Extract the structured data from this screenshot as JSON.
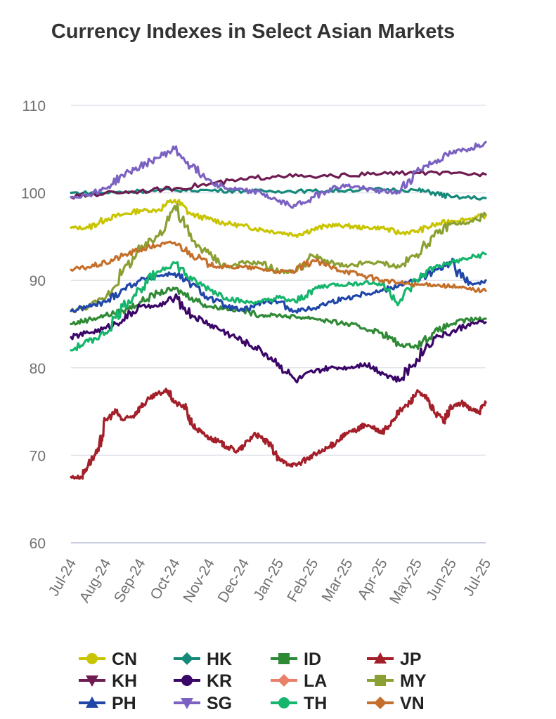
{
  "chart_data": {
    "type": "line",
    "title": "Currency Indexes in Select Asian Markets",
    "xlabel": "",
    "ylabel": "",
    "ylim": [
      60,
      110
    ],
    "yticks": [
      60,
      70,
      80,
      90,
      100,
      110
    ],
    "xlim": [
      0,
      12
    ],
    "grid": true,
    "legend_position": "bottom",
    "categories": [
      "Jul-24",
      "Aug-24",
      "Sep-24",
      "Oct-24",
      "Nov-24",
      "Dec-24",
      "Jan-25",
      "Feb-25",
      "Mar-25",
      "Apr-25",
      "May-25",
      "Jun-25",
      "Jul-25"
    ],
    "series": [
      {
        "name": "CN",
        "color": "#c8c400",
        "marker": "circle",
        "points": [
          [
            0,
            96
          ],
          [
            0.5,
            96
          ],
          [
            1,
            97
          ],
          [
            1.5,
            97.5
          ],
          [
            2,
            98
          ],
          [
            2.5,
            98
          ],
          [
            3,
            99.2
          ],
          [
            3.5,
            97.5
          ],
          [
            4,
            97
          ],
          [
            4.5,
            96.5
          ],
          [
            5,
            96.2
          ],
          [
            5.5,
            95.8
          ],
          [
            6,
            95.5
          ],
          [
            6.5,
            95.2
          ],
          [
            7,
            95.8
          ],
          [
            7.5,
            96.3
          ],
          [
            8,
            96.2
          ],
          [
            8.5,
            96
          ],
          [
            9,
            96
          ],
          [
            9.5,
            95.4
          ],
          [
            10,
            95.6
          ],
          [
            10.5,
            96.3
          ],
          [
            11,
            96.8
          ],
          [
            11.5,
            97
          ],
          [
            12,
            97.4
          ]
        ]
      },
      {
        "name": "HK",
        "color": "#14897a",
        "marker": "diamond",
        "points": [
          [
            0,
            100
          ],
          [
            1,
            100
          ],
          [
            2,
            100.2
          ],
          [
            3,
            100.3
          ],
          [
            4,
            100.3
          ],
          [
            5,
            100.2
          ],
          [
            6,
            100.2
          ],
          [
            7,
            100.2
          ],
          [
            8,
            100.3
          ],
          [
            9,
            100.4
          ],
          [
            10,
            100.3
          ],
          [
            10.5,
            100
          ],
          [
            11,
            99.5
          ],
          [
            12,
            99.4
          ]
        ]
      },
      {
        "name": "ID",
        "color": "#2f8a35",
        "marker": "square",
        "points": [
          [
            0,
            85
          ],
          [
            0.5,
            85.5
          ],
          [
            1,
            86
          ],
          [
            1.5,
            86.5
          ],
          [
            2,
            87.5
          ],
          [
            2.5,
            88.5
          ],
          [
            3,
            89
          ],
          [
            3.5,
            88
          ],
          [
            4,
            87
          ],
          [
            4.5,
            86.8
          ],
          [
            5,
            86.5
          ],
          [
            5.5,
            86
          ],
          [
            6,
            86
          ],
          [
            6.5,
            85.8
          ],
          [
            7,
            85.7
          ],
          [
            7.5,
            85.3
          ],
          [
            8,
            85
          ],
          [
            8.5,
            84.5
          ],
          [
            9,
            84
          ],
          [
            9.5,
            82.6
          ],
          [
            10,
            82.5
          ],
          [
            10.5,
            84
          ],
          [
            11,
            85
          ],
          [
            11.5,
            85.5
          ],
          [
            12,
            85.6
          ]
        ]
      },
      {
        "name": "JP",
        "color": "#a31f29",
        "marker": "triangle-up",
        "points": [
          [
            0,
            67.5
          ],
          [
            0.3,
            67.5
          ],
          [
            0.5,
            69
          ],
          [
            0.8,
            70.5
          ],
          [
            1,
            74
          ],
          [
            1.3,
            75
          ],
          [
            1.5,
            74
          ],
          [
            1.8,
            74.5
          ],
          [
            2,
            75.5
          ],
          [
            2.3,
            76.5
          ],
          [
            2.5,
            77
          ],
          [
            2.8,
            77.4
          ],
          [
            3,
            76
          ],
          [
            3.3,
            75.5
          ],
          [
            3.5,
            73.5
          ],
          [
            3.8,
            72.5
          ],
          [
            4,
            72
          ],
          [
            4.3,
            71.5
          ],
          [
            4.5,
            71
          ],
          [
            4.8,
            70.5
          ],
          [
            5,
            71
          ],
          [
            5.3,
            72.5
          ],
          [
            5.5,
            72
          ],
          [
            5.8,
            71
          ],
          [
            6,
            69.5
          ],
          [
            6.3,
            69
          ],
          [
            6.5,
            68.9
          ],
          [
            6.8,
            69.5
          ],
          [
            7,
            70
          ],
          [
            7.3,
            70.5
          ],
          [
            7.5,
            71
          ],
          [
            7.8,
            72
          ],
          [
            8,
            72.5
          ],
          [
            8.3,
            73
          ],
          [
            8.5,
            73.5
          ],
          [
            8.8,
            73
          ],
          [
            9,
            72.5
          ],
          [
            9.3,
            74
          ],
          [
            9.5,
            75
          ],
          [
            9.8,
            76
          ],
          [
            10,
            77.2
          ],
          [
            10.3,
            76.5
          ],
          [
            10.5,
            75
          ],
          [
            10.8,
            74
          ],
          [
            11,
            75.5
          ],
          [
            11.3,
            76
          ],
          [
            11.5,
            75.5
          ],
          [
            11.8,
            74.8
          ],
          [
            12,
            76
          ]
        ]
      },
      {
        "name": "KH",
        "color": "#6e1c52",
        "marker": "triangle-down",
        "points": [
          [
            0,
            99.5
          ],
          [
            1,
            100
          ],
          [
            2,
            100.2
          ],
          [
            3,
            100.5
          ],
          [
            4,
            101
          ],
          [
            5,
            101.5
          ],
          [
            6,
            102
          ],
          [
            7,
            101.8
          ],
          [
            8,
            102
          ],
          [
            9,
            102.2
          ],
          [
            10,
            102.3
          ],
          [
            11,
            102.2
          ],
          [
            12,
            102.1
          ]
        ]
      },
      {
        "name": "KR",
        "color": "#3a0667",
        "marker": "circle",
        "points": [
          [
            0,
            83.5
          ],
          [
            0.5,
            84
          ],
          [
            1,
            84.5
          ],
          [
            1.5,
            85.5
          ],
          [
            2,
            87
          ],
          [
            2.5,
            87
          ],
          [
            3,
            88
          ],
          [
            3.5,
            86
          ],
          [
            4,
            85
          ],
          [
            4.5,
            84
          ],
          [
            5,
            83
          ],
          [
            5.5,
            82
          ],
          [
            6,
            80.5
          ],
          [
            6.5,
            78.5
          ],
          [
            7,
            79.5
          ],
          [
            7.5,
            80
          ],
          [
            8,
            80
          ],
          [
            8.5,
            80.5
          ],
          [
            9,
            79.5
          ],
          [
            9.5,
            78.5
          ],
          [
            10,
            81
          ],
          [
            10.5,
            83.5
          ],
          [
            11,
            84
          ],
          [
            11.5,
            85
          ],
          [
            12,
            85.2
          ]
        ]
      },
      {
        "name": "LA",
        "color": "#e8806a",
        "marker": "diamond",
        "points": []
      },
      {
        "name": "MY",
        "color": "#8aa032",
        "marker": "square",
        "points": [
          [
            0,
            86.5
          ],
          [
            0.5,
            87
          ],
          [
            1,
            88
          ],
          [
            1.5,
            91
          ],
          [
            2,
            93.5
          ],
          [
            2.5,
            95
          ],
          [
            3,
            98.5
          ],
          [
            3.5,
            94.5
          ],
          [
            4,
            93
          ],
          [
            4.5,
            91.5
          ],
          [
            5,
            92
          ],
          [
            5.5,
            92
          ],
          [
            6,
            91
          ],
          [
            6.5,
            91
          ],
          [
            7,
            92.8
          ],
          [
            7.5,
            92
          ],
          [
            8,
            91.5
          ],
          [
            8.5,
            92
          ],
          [
            9,
            92
          ],
          [
            9.5,
            91.5
          ],
          [
            10,
            93
          ],
          [
            10.5,
            95
          ],
          [
            11,
            96.5
          ],
          [
            11.5,
            96.5
          ],
          [
            12,
            97.5
          ]
        ]
      },
      {
        "name": "PH",
        "color": "#1f46a8",
        "marker": "triangle-up",
        "points": [
          [
            0,
            86.5
          ],
          [
            0.5,
            87
          ],
          [
            1,
            87.5
          ],
          [
            1.5,
            89
          ],
          [
            2,
            90
          ],
          [
            2.5,
            90.5
          ],
          [
            3,
            90.8
          ],
          [
            3.5,
            89.5
          ],
          [
            4,
            88
          ],
          [
            4.5,
            87
          ],
          [
            5,
            86.5
          ],
          [
            5.5,
            87.5
          ],
          [
            6,
            87.5
          ],
          [
            6.5,
            86.5
          ],
          [
            7,
            86.8
          ],
          [
            7.5,
            87.5
          ],
          [
            8,
            88
          ],
          [
            8.5,
            88.5
          ],
          [
            9,
            88.8
          ],
          [
            9.5,
            89.5
          ],
          [
            10,
            90
          ],
          [
            10.5,
            91
          ],
          [
            11,
            92
          ],
          [
            11.5,
            89.5
          ],
          [
            12,
            90
          ]
        ]
      },
      {
        "name": "SG",
        "color": "#7b62c2",
        "marker": "triangle-down",
        "points": [
          [
            0,
            99.5
          ],
          [
            0.5,
            99.8
          ],
          [
            1,
            100.5
          ],
          [
            1.5,
            102
          ],
          [
            2,
            103
          ],
          [
            2.5,
            104
          ],
          [
            3,
            105
          ],
          [
            3.5,
            103
          ],
          [
            4,
            101.5
          ],
          [
            4.5,
            100.5
          ],
          [
            5,
            100.3
          ],
          [
            5.5,
            100
          ],
          [
            6,
            99
          ],
          [
            6.5,
            98.5
          ],
          [
            7,
            99.5
          ],
          [
            7.5,
            100.5
          ],
          [
            8,
            100.8
          ],
          [
            8.5,
            100.5
          ],
          [
            9,
            100.2
          ],
          [
            9.5,
            100
          ],
          [
            10,
            102.5
          ],
          [
            10.5,
            103.5
          ],
          [
            11,
            104.5
          ],
          [
            11.5,
            105
          ],
          [
            12,
            105.8
          ]
        ]
      },
      {
        "name": "TH",
        "color": "#15b56c",
        "marker": "circle",
        "points": [
          [
            0,
            82
          ],
          [
            0.5,
            83
          ],
          [
            1,
            84
          ],
          [
            1.5,
            87
          ],
          [
            2,
            89
          ],
          [
            2.5,
            91
          ],
          [
            3,
            92
          ],
          [
            3.5,
            90
          ],
          [
            4,
            89
          ],
          [
            4.5,
            88
          ],
          [
            5,
            87.5
          ],
          [
            5.5,
            87.5
          ],
          [
            6,
            88
          ],
          [
            6.5,
            87.5
          ],
          [
            7,
            89
          ],
          [
            7.5,
            89.5
          ],
          [
            8,
            89.5
          ],
          [
            8.5,
            89.8
          ],
          [
            9,
            89.5
          ],
          [
            9.5,
            87.5
          ],
          [
            10,
            90
          ],
          [
            10.5,
            91.5
          ],
          [
            11,
            92
          ],
          [
            11.5,
            92.5
          ],
          [
            12,
            93
          ]
        ]
      },
      {
        "name": "VN",
        "color": "#c46f2a",
        "marker": "diamond",
        "points": [
          [
            0,
            91.2
          ],
          [
            0.5,
            91.5
          ],
          [
            1,
            92
          ],
          [
            1.5,
            92.8
          ],
          [
            2,
            93.5
          ],
          [
            2.5,
            94
          ],
          [
            3,
            94.3
          ],
          [
            3.5,
            93
          ],
          [
            4,
            91.8
          ],
          [
            4.5,
            91.5
          ],
          [
            5,
            91.5
          ],
          [
            5.5,
            91.3
          ],
          [
            6,
            91
          ],
          [
            6.5,
            91
          ],
          [
            7,
            92.3
          ],
          [
            7.5,
            91.5
          ],
          [
            8,
            91
          ],
          [
            8.5,
            90.5
          ],
          [
            9,
            90
          ],
          [
            9.5,
            89.7
          ],
          [
            10,
            89.5
          ],
          [
            10.5,
            89.5
          ],
          [
            11,
            89.3
          ],
          [
            11.5,
            89
          ],
          [
            12,
            88.8
          ]
        ]
      }
    ]
  }
}
